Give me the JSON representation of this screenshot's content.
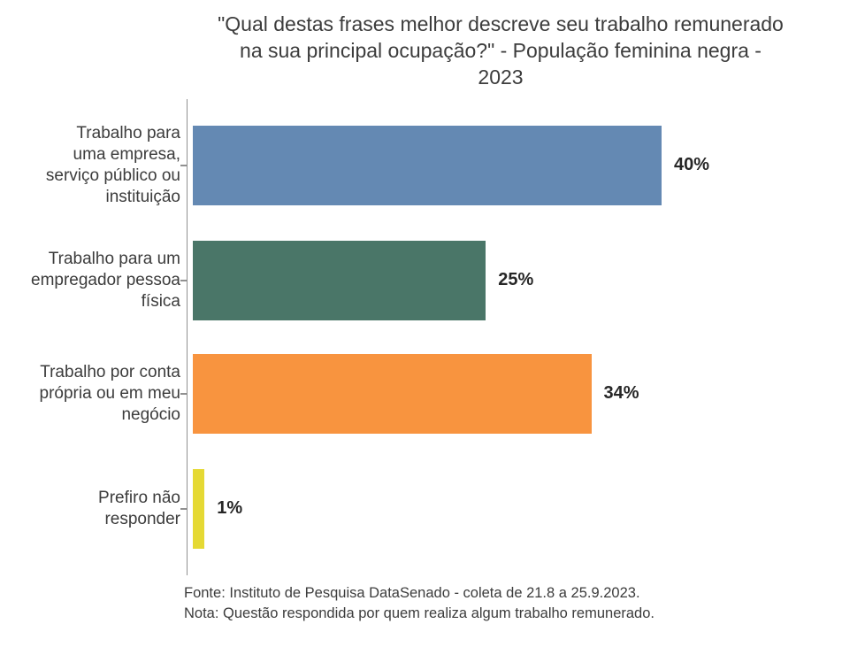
{
  "title_lines": [
    "\"Qual destas frases melhor descreve seu trabalho remunerado",
    "na sua principal ocupação?\" - População feminina negra -",
    "2023"
  ],
  "chart_data": {
    "type": "bar",
    "orientation": "horizontal",
    "title": "\"Qual destas frases melhor descreve seu trabalho remunerado na sua principal ocupação?\" - População feminina negra - 2023",
    "categories": [
      "Trabalho para uma empresa, serviço público ou instituição",
      "Trabalho para um empregador pessoa física",
      "Trabalho por conta própria ou em meu negócio",
      "Prefiro não responder"
    ],
    "label_lines": [
      [
        "Trabalho para",
        "uma empresa,",
        "serviço público ou",
        "instituição"
      ],
      [
        "Trabalho para um",
        "empregador pessoa",
        "física"
      ],
      [
        "Trabalho por conta",
        "própria ou em meu",
        "negócio"
      ],
      [
        "Prefiro não",
        "responder"
      ]
    ],
    "values": [
      40,
      25,
      34,
      1
    ],
    "value_labels": [
      "40%",
      "25%",
      "34%",
      "1%"
    ],
    "colors": [
      "#6489b3",
      "#4a7668",
      "#f8943f",
      "#e5d934"
    ],
    "xlim": [
      0,
      55
    ],
    "grid": false,
    "legend": null,
    "axis_color": "#909090"
  },
  "footer": {
    "source": "Fonte: Instituto de Pesquisa DataSenado - coleta de 21.8 a 25.9.2023.",
    "note": "Nota: Questão respondida por quem realiza algum trabalho remunerado."
  }
}
